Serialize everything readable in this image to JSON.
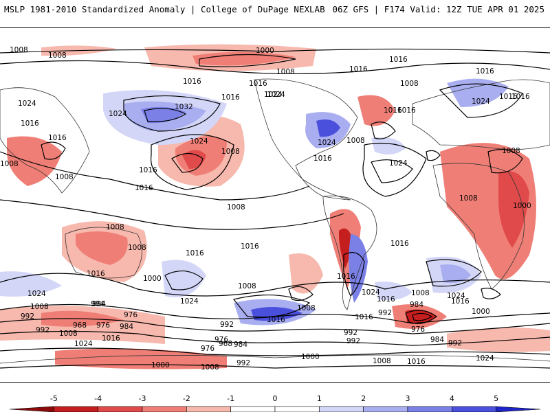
{
  "header": {
    "title": "MSLP 1981-2010 Standardized Anomaly | College of DuPage NEXLAB",
    "run_info": "06Z GFS | F174 Valid: 12Z TUE APR 01 2025"
  },
  "map": {
    "isobar_labels": [
      {
        "text": "1008"
      },
      {
        "text": "1008"
      },
      {
        "text": "1000"
      },
      {
        "text": "1008"
      },
      {
        "text": "1016"
      },
      {
        "text": "1016"
      },
      {
        "text": "1016"
      },
      {
        "text": "1024"
      },
      {
        "text": "1032"
      },
      {
        "text": "1024"
      },
      {
        "text": "1024"
      },
      {
        "text": "1016"
      },
      {
        "text": "1016"
      },
      {
        "text": "1024"
      },
      {
        "text": "1008"
      },
      {
        "text": "1016"
      },
      {
        "text": "1008"
      },
      {
        "text": "1016"
      },
      {
        "text": "1024"
      },
      {
        "text": "1008"
      },
      {
        "text": "1016"
      },
      {
        "text": "1008"
      },
      {
        "text": "1016"
      },
      {
        "text": "1008"
      },
      {
        "text": "1016"
      },
      {
        "text": "1024"
      },
      {
        "text": "1016"
      },
      {
        "text": "1016"
      },
      {
        "text": "1016"
      },
      {
        "text": "1008"
      },
      {
        "text": "1024"
      },
      {
        "text": "1008"
      },
      {
        "text": "1016"
      },
      {
        "text": "1008"
      },
      {
        "text": "1008"
      },
      {
        "text": "1008"
      },
      {
        "text": "1016"
      },
      {
        "text": "1000"
      },
      {
        "text": "1024"
      },
      {
        "text": "1024"
      },
      {
        "text": "1008"
      },
      {
        "text": "1008"
      },
      {
        "text": "1008"
      },
      {
        "text": "1016"
      },
      {
        "text": "1024"
      },
      {
        "text": "1016"
      },
      {
        "text": "1016"
      },
      {
        "text": "992"
      },
      {
        "text": "984"
      },
      {
        "text": "976"
      },
      {
        "text": "1008"
      },
      {
        "text": "1024"
      },
      {
        "text": "1016"
      },
      {
        "text": "1000"
      },
      {
        "text": "992"
      },
      {
        "text": "992"
      },
      {
        "text": "984"
      },
      {
        "text": "976"
      },
      {
        "text": "984"
      },
      {
        "text": "992"
      },
      {
        "text": "1016"
      },
      {
        "text": "1024"
      },
      {
        "text": "984"
      },
      {
        "text": "968"
      },
      {
        "text": "976"
      },
      {
        "text": "1008"
      },
      {
        "text": "1024"
      },
      {
        "text": "1016"
      },
      {
        "text": "984"
      },
      {
        "text": "976"
      },
      {
        "text": "992"
      },
      {
        "text": "976"
      },
      {
        "text": "968"
      },
      {
        "text": "984"
      },
      {
        "text": "992"
      },
      {
        "text": "1000"
      },
      {
        "text": "1008"
      },
      {
        "text": "1000"
      },
      {
        "text": "1008"
      },
      {
        "text": "992"
      },
      {
        "text": "1016"
      },
      {
        "text": "1024"
      },
      {
        "text": "1016"
      },
      {
        "text": "1016"
      },
      {
        "text": "1016"
      },
      {
        "text": "1016"
      },
      {
        "text": "1000"
      },
      {
        "text": "992"
      }
    ],
    "colors": {
      "neg5": "#8b0a0a",
      "neg4": "#c41e1e",
      "neg3": "#e04a4a",
      "neg2": "#ef7f76",
      "neg1": "#f7b8ad",
      "zero": "#ffffff",
      "pos1": "#d3d6f7",
      "pos2": "#a9aef0",
      "pos3": "#7a80e6",
      "pos4": "#4a50dc",
      "pos5": "#1f24c8"
    }
  },
  "colorbar": {
    "ticks": [
      "-5",
      "-4",
      "-3",
      "-2",
      "-1",
      "0",
      "1",
      "2",
      "3",
      "4",
      "5"
    ],
    "colors": [
      "#8b0a0a",
      "#c41e1e",
      "#e04a4a",
      "#ef7f76",
      "#f7b8ad",
      "#ffffff",
      "#ffffff",
      "#d3d6f7",
      "#a9aef0",
      "#7a80e6",
      "#4a50dc",
      "#1f24c8"
    ]
  }
}
